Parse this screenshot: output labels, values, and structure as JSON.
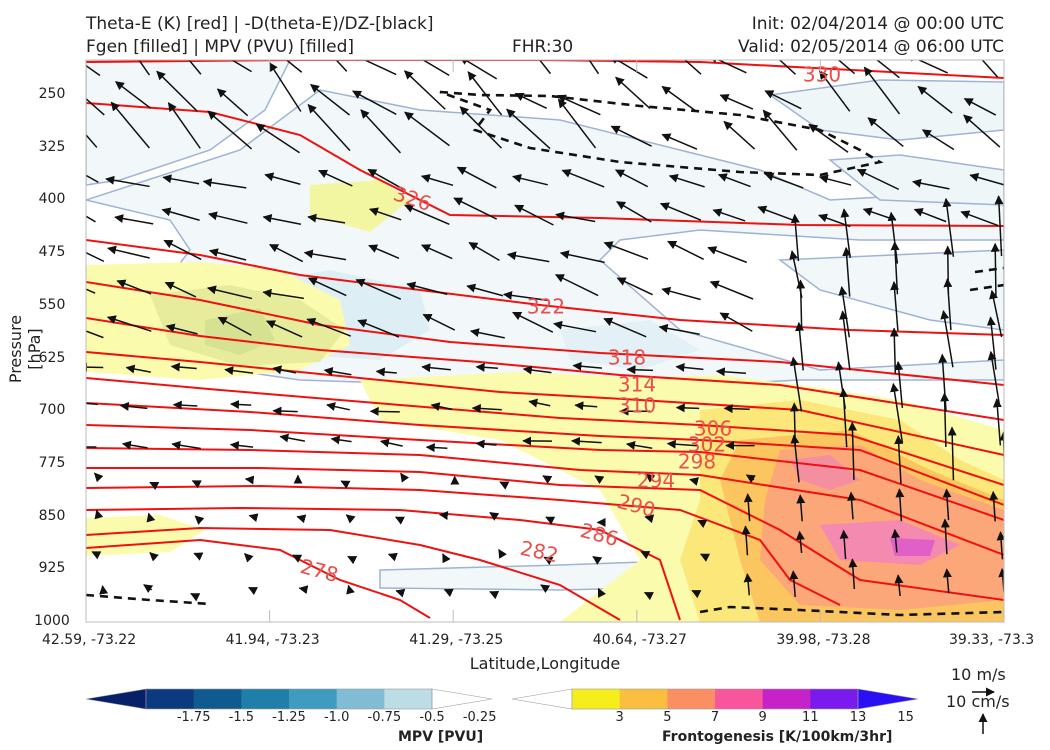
{
  "header": {
    "title_line1": "Theta-E (K) [red] | -D(theta-E)/DZ-[black]",
    "title_line2": "Fgen [filled] | MPV (PVU) [filled]",
    "fhr": "FHR:30",
    "init": "Init: 02/04/2014 @ 00:00 UTC",
    "valid": "Valid: 02/05/2014 @ 06:00 UTC"
  },
  "chart_data": {
    "type": "cross-section",
    "ylabel": "Pressure [hPa]",
    "xlabel": "Latitude,Longitude",
    "y_ticks": [
      "250",
      "325",
      "400",
      "475",
      "550",
      "625",
      "700",
      "775",
      "850",
      "925",
      "1000"
    ],
    "x_ticks": [
      "42.59, -73.22",
      "41.94, -73.23",
      "41.29, -73.25",
      "40.64, -73.27",
      "39.98, -73.28",
      "39.33, -73.3"
    ],
    "theta_e_contour_labels": [
      "330",
      "326",
      "322",
      "318",
      "314",
      "310",
      "306",
      "302",
      "298",
      "294",
      "290",
      "286",
      "282",
      "278"
    ],
    "mpv_colorbar": {
      "title": "MPV [PVU]",
      "ticks": [
        "-1.75",
        "-1.5",
        "-1.25",
        "-1.0",
        "-0.75",
        "-0.5",
        "-0.25"
      ],
      "colors": [
        "#08206a",
        "#0c3a7e",
        "#0f5a8f",
        "#1f7fa8",
        "#3f9cc0",
        "#80bdd4",
        "#bcdce6",
        "#ffffff"
      ]
    },
    "fgen_colorbar": {
      "title": "Frontogenesis [K/100km/3hr]",
      "ticks": [
        "3",
        "5",
        "7",
        "9",
        "11",
        "13",
        "15"
      ],
      "colors": [
        "#ffffff",
        "#f6ee1a",
        "#fbbf3f",
        "#fb8f63",
        "#f8559c",
        "#c522c8",
        "#7a1bed",
        "#2a10f5"
      ]
    },
    "wind_key": {
      "horizontal": "10 m/s",
      "vertical": "10 cm/s"
    }
  }
}
